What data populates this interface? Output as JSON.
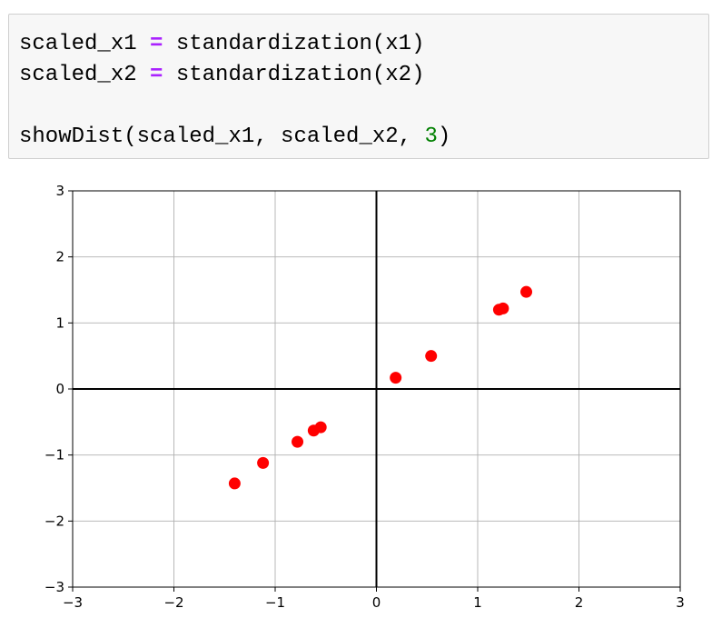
{
  "code_cell": {
    "lines": [
      [
        {
          "text": "scaled_x1 ",
          "kind": "plain"
        },
        {
          "text": "=",
          "kind": "op"
        },
        {
          "text": " standardization(x1)",
          "kind": "plain"
        }
      ],
      [
        {
          "text": "scaled_x2 ",
          "kind": "plain"
        },
        {
          "text": "=",
          "kind": "op"
        },
        {
          "text": " standardization(x2)",
          "kind": "plain"
        }
      ],
      [],
      [
        {
          "text": "showDist(scaled_x1, scaled_x2, ",
          "kind": "plain"
        },
        {
          "text": "3",
          "kind": "num"
        },
        {
          "text": ")",
          "kind": "plain"
        }
      ]
    ],
    "colors": {
      "background": "#f7f7f7",
      "operator": "#aa22ff",
      "number": "#008000"
    }
  },
  "chart_data": {
    "type": "scatter",
    "xlim": [
      -3,
      3
    ],
    "ylim": [
      -3,
      3
    ],
    "xticks": [
      "−3",
      "−2",
      "−1",
      "0",
      "1",
      "2",
      "3"
    ],
    "yticks": [
      "−3",
      "−2",
      "−1",
      "0",
      "1",
      "2",
      "3"
    ],
    "grid": true,
    "axis_lines_at_zero": true,
    "marker_color": "#ff0000",
    "points": [
      {
        "x": -1.4,
        "y": -1.43
      },
      {
        "x": -1.12,
        "y": -1.12
      },
      {
        "x": -0.78,
        "y": -0.8
      },
      {
        "x": -0.62,
        "y": -0.63
      },
      {
        "x": -0.55,
        "y": -0.58
      },
      {
        "x": 0.19,
        "y": 0.17
      },
      {
        "x": 0.54,
        "y": 0.5
      },
      {
        "x": 1.21,
        "y": 1.2
      },
      {
        "x": 1.25,
        "y": 1.22
      },
      {
        "x": 1.48,
        "y": 1.47
      }
    ]
  }
}
